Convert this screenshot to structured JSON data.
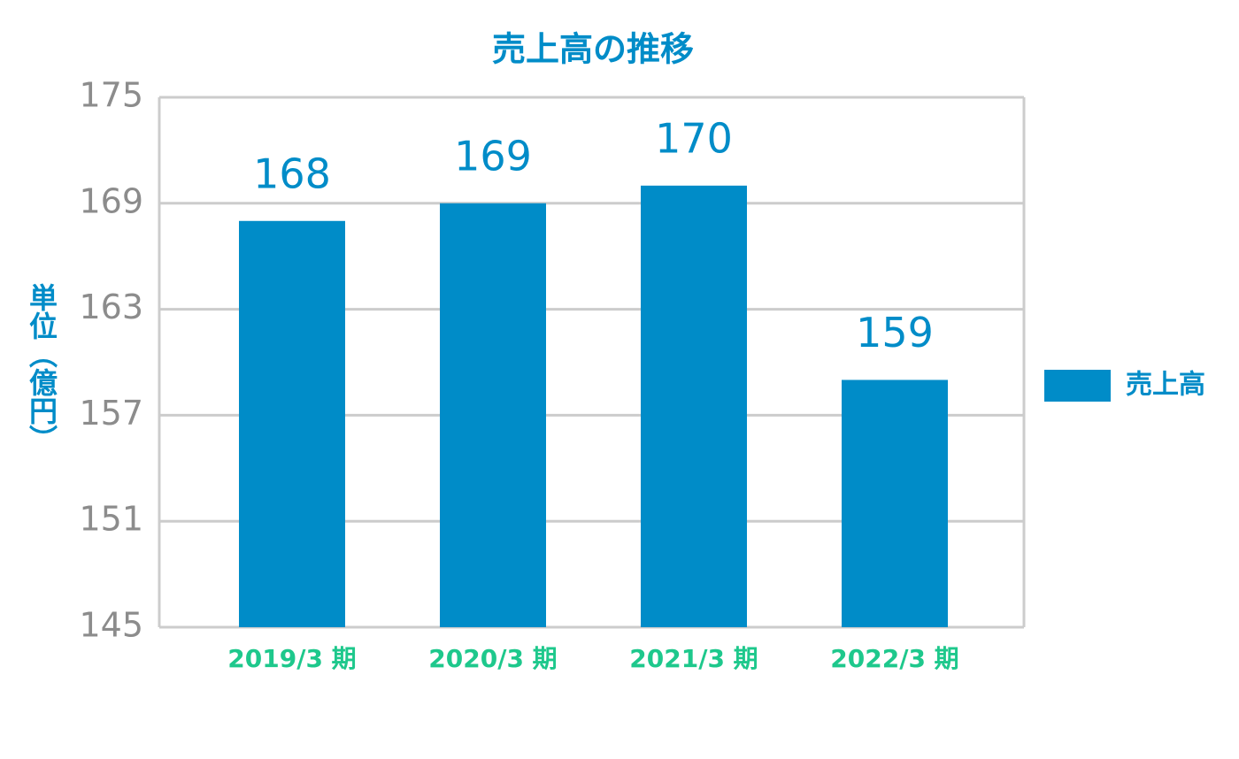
{
  "chart_data": {
    "type": "bar",
    "title": "売上高の推移",
    "y_label": "単位（億円）",
    "categories": [
      "2019/3 期",
      "2020/3 期",
      "2021/3 期",
      "2022/3 期"
    ],
    "series": [
      {
        "name": "売上高",
        "color": "#008cc8",
        "values": [
          168,
          169,
          170,
          159
        ]
      }
    ],
    "ylim": [
      145,
      175
    ],
    "yticks": [
      145,
      151,
      157,
      163,
      169,
      175
    ],
    "grid": true,
    "legend": "right"
  }
}
